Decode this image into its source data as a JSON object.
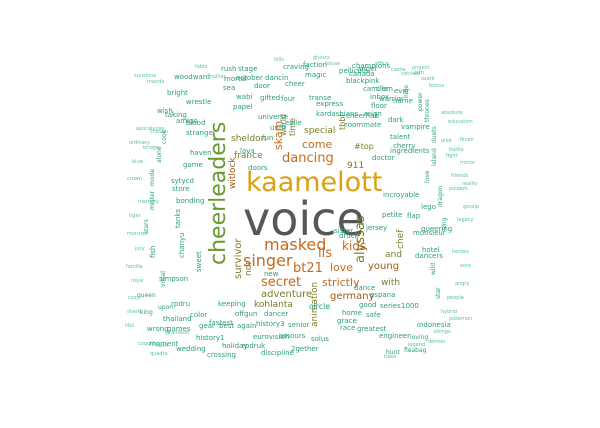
{
  "colors": {
    "dark": "#575757",
    "gold": "#d8a213",
    "green": "#6a9a2f",
    "orange": "#c86a1c",
    "brown": "#9c5a1a",
    "olive": "#7a7d2a",
    "teal": "#2b9e7b",
    "lightteal": "#5cc0a0"
  },
  "words": [
    {
      "text": "voice",
      "color": "dark"
    },
    {
      "text": "kaamelott",
      "color": "gold"
    },
    {
      "text": "cheerleaders",
      "color": "green"
    },
    {
      "text": "masked",
      "color": "orange"
    },
    {
      "text": "singer",
      "color": "orange"
    },
    {
      "text": "dancing",
      "color": "orange"
    },
    {
      "text": "alyssas",
      "color": "olive"
    },
    {
      "text": "bt21",
      "color": "orange"
    },
    {
      "text": "secret",
      "color": "orange"
    },
    {
      "text": "lls",
      "color": "orange"
    },
    {
      "text": "kids",
      "color": "orange"
    },
    {
      "text": "love",
      "color": "orange"
    },
    {
      "text": "strictly",
      "color": "orange"
    },
    {
      "text": "come",
      "color": "orange"
    },
    {
      "text": "skam",
      "color": "orange"
    },
    {
      "text": "witlock",
      "color": "brown"
    },
    {
      "text": "survivor",
      "color": "olive"
    },
    {
      "text": "adventure",
      "color": "olive"
    },
    {
      "text": "germany",
      "color": "brown"
    },
    {
      "text": "young",
      "color": "brown"
    },
    {
      "text": "france",
      "color": "olive"
    },
    {
      "text": "sheldon",
      "color": "olive"
    },
    {
      "text": "special",
      "color": "olive"
    },
    {
      "text": "and",
      "color": "olive"
    },
    {
      "text": "911",
      "color": "olive"
    },
    {
      "text": "ndr",
      "color": "olive"
    },
    {
      "text": "chef",
      "color": "olive"
    },
    {
      "text": "animation",
      "color": "olive"
    },
    {
      "text": "with",
      "color": "olive"
    },
    {
      "text": "kohlanta",
      "color": "olive"
    },
    {
      "text": "world",
      "color": "olive"
    },
    {
      "text": "time",
      "color": "olive"
    },
    {
      "text": "tbbt",
      "color": "olive"
    },
    {
      "text": "#top",
      "color": "olive"
    },
    {
      "text": "circle",
      "color": "teal"
    },
    {
      "text": "druck",
      "color": "teal"
    },
    {
      "text": "jersey",
      "color": "teal"
    },
    {
      "text": "roommate",
      "color": "teal"
    },
    {
      "text": "kardashians",
      "color": "teal"
    },
    {
      "text": "express",
      "color": "teal"
    },
    {
      "text": "cheerhab",
      "color": "teal"
    },
    {
      "text": "history3",
      "color": "teal"
    },
    {
      "text": "dancer",
      "color": "teal"
    },
    {
      "text": "eurovision",
      "color": "teal"
    },
    {
      "text": "discipline",
      "color": "teal"
    },
    {
      "text": "2gether",
      "color": "teal"
    },
    {
      "text": "wedding",
      "color": "teal"
    },
    {
      "text": "crossing",
      "color": "teal"
    },
    {
      "text": "history1",
      "color": "teal"
    },
    {
      "text": "holiday",
      "color": "teal"
    },
    {
      "text": "rpdruk",
      "color": "teal"
    },
    {
      "text": "keeping",
      "color": "teal"
    },
    {
      "text": "offgun",
      "color": "teal"
    },
    {
      "text": "rpdru",
      "color": "teal"
    },
    {
      "text": "simpson",
      "color": "teal"
    },
    {
      "text": "games",
      "color": "teal"
    },
    {
      "text": "wrong",
      "color": "teal"
    },
    {
      "text": "moment",
      "color": "teal"
    },
    {
      "text": "fastest",
      "color": "teal"
    },
    {
      "text": "thailand",
      "color": "teal"
    },
    {
      "text": "fish",
      "color": "teal"
    },
    {
      "text": "sweet",
      "color": "teal"
    },
    {
      "text": "chanyu",
      "color": "teal"
    },
    {
      "text": "tanks",
      "color": "teal"
    },
    {
      "text": "bonding",
      "color": "teal"
    },
    {
      "text": "store",
      "color": "teal"
    },
    {
      "text": "game",
      "color": "teal"
    },
    {
      "text": "haven",
      "color": "teal"
    },
    {
      "text": "sytycd",
      "color": "teal"
    },
    {
      "text": "stranger",
      "color": "teal"
    },
    {
      "text": "universe",
      "color": "teal"
    },
    {
      "text": "gifted",
      "color": "teal"
    },
    {
      "text": "four",
      "color": "teal"
    },
    {
      "text": "craving",
      "color": "teal"
    },
    {
      "text": "stage",
      "color": "teal"
    },
    {
      "text": "rush",
      "color": "teal"
    },
    {
      "text": "october",
      "color": "teal"
    },
    {
      "text": "dancin",
      "color": "teal"
    },
    {
      "text": "magic",
      "color": "teal"
    },
    {
      "text": "faction",
      "color": "teal"
    },
    {
      "text": "champions",
      "color": "teal"
    },
    {
      "text": "cheer",
      "color": "teal"
    },
    {
      "text": "canada",
      "color": "teal"
    },
    {
      "text": "blackpink",
      "color": "teal"
    },
    {
      "text": "camilla",
      "color": "teal"
    },
    {
      "text": "inbox",
      "color": "teal"
    },
    {
      "text": "warrior",
      "color": "teal"
    },
    {
      "text": "name",
      "color": "teal"
    },
    {
      "text": "vampire",
      "color": "teal"
    },
    {
      "text": "dark",
      "color": "teal"
    },
    {
      "text": "talent",
      "color": "teal"
    },
    {
      "text": "cherry",
      "color": "teal"
    },
    {
      "text": "ingredients",
      "color": "teal"
    },
    {
      "text": "doctor",
      "color": "teal"
    },
    {
      "text": "petite",
      "color": "teal"
    },
    {
      "text": "incroyable",
      "color": "teal"
    },
    {
      "text": "flap",
      "color": "teal"
    },
    {
      "text": "lego",
      "color": "teal"
    },
    {
      "text": "queering",
      "color": "teal"
    },
    {
      "text": "dancers",
      "color": "teal"
    },
    {
      "text": "monsieur",
      "color": "teal"
    },
    {
      "text": "hotel",
      "color": "teal"
    },
    {
      "text": "indonesia",
      "color": "teal"
    },
    {
      "text": "espana",
      "color": "teal"
    },
    {
      "text": "series",
      "color": "teal"
    },
    {
      "text": "1000",
      "color": "teal"
    },
    {
      "text": "greatest",
      "color": "teal"
    },
    {
      "text": "engineer",
      "color": "teal"
    },
    {
      "text": "home",
      "color": "teal"
    },
    {
      "text": "grace",
      "color": "teal"
    },
    {
      "text": "race",
      "color": "teal"
    },
    {
      "text": "solus",
      "color": "teal"
    },
    {
      "text": "amours",
      "color": "teal"
    },
    {
      "text": "senior",
      "color": "teal"
    },
    {
      "text": "safe",
      "color": "teal"
    },
    {
      "text": "good",
      "color": "teal"
    },
    {
      "text": "dance",
      "color": "teal"
    },
    {
      "text": "sister",
      "color": "teal"
    },
    {
      "text": "new",
      "color": "teal"
    },
    {
      "text": "doors",
      "color": "teal"
    },
    {
      "text": "lava",
      "color": "teal"
    },
    {
      "text": "fun",
      "color": "teal"
    },
    {
      "text": "unfit",
      "color": "teal"
    },
    {
      "text": "exile",
      "color": "teal"
    },
    {
      "text": "transe",
      "color": "teal"
    },
    {
      "text": "sea",
      "color": "teal"
    },
    {
      "text": "mortal",
      "color": "teal"
    },
    {
      "text": "door",
      "color": "teal"
    },
    {
      "text": "papel",
      "color": "teal"
    },
    {
      "text": "wabi",
      "color": "teal"
    },
    {
      "text": "blood",
      "color": "teal"
    },
    {
      "text": "amigo",
      "color": "teal"
    },
    {
      "text": "wish",
      "color": "teal"
    },
    {
      "text": "taking",
      "color": "teal"
    },
    {
      "text": "wrestle",
      "color": "teal"
    },
    {
      "text": "bright",
      "color": "teal"
    },
    {
      "text": "woodward",
      "color": "teal"
    },
    {
      "text": "pellicula",
      "color": "teal"
    },
    {
      "text": "angel",
      "color": "teal"
    },
    {
      "text": "clem",
      "color": "teal"
    },
    {
      "text": "ever",
      "color": "teal"
    },
    {
      "text": "reign",
      "color": "teal"
    },
    {
      "text": "floor",
      "color": "teal"
    },
    {
      "text": "gear",
      "color": "teal"
    },
    {
      "text": "best",
      "color": "teal"
    },
    {
      "text": "again",
      "color": "teal"
    },
    {
      "text": "color",
      "color": "teal"
    },
    {
      "text": "upon",
      "color": "teal"
    },
    {
      "text": "queen",
      "color": "teal"
    },
    {
      "text": "king",
      "color": "teal"
    },
    {
      "text": "vocal",
      "color": "teal"
    },
    {
      "text": "stars",
      "color": "teal"
    },
    {
      "text": "mister",
      "color": "teal"
    },
    {
      "text": "mode",
      "color": "teal"
    },
    {
      "text": "alone",
      "color": "teal"
    },
    {
      "text": "cook",
      "color": "teal"
    },
    {
      "text": "wild",
      "color": "teal"
    },
    {
      "text": "love",
      "color": "teal"
    },
    {
      "text": "island",
      "color": "teal"
    },
    {
      "text": "duets",
      "color": "teal"
    },
    {
      "text": "thrones",
      "color": "teal"
    },
    {
      "text": "power",
      "color": "teal"
    },
    {
      "text": "nine",
      "color": "teal"
    },
    {
      "text": "loving",
      "color": "teal"
    },
    {
      "text": "fleabag",
      "color": "teal"
    },
    {
      "text": "hunt",
      "color": "teal"
    },
    {
      "text": "dragon",
      "color": "teal"
    },
    {
      "text": "sing",
      "color": "teal"
    },
    {
      "text": "star",
      "color": "teal"
    },
    {
      "text": "project",
      "color": "lightteal"
    },
    {
      "text": "2sth",
      "color": "lightteal"
    },
    {
      "text": "absolute",
      "color": "lightteal"
    },
    {
      "text": "education",
      "color": "lightteal"
    },
    {
      "text": "finish",
      "color": "lightteal"
    },
    {
      "text": "grandson",
      "color": "lightteal"
    },
    {
      "text": "hybrid",
      "color": "lightteal"
    },
    {
      "text": "sunshine",
      "color": "lightteal"
    },
    {
      "text": "mando",
      "color": "lightteal"
    },
    {
      "text": "fable",
      "color": "lightteal"
    },
    {
      "text": "mulher",
      "color": "lightteal"
    },
    {
      "text": "battle",
      "color": "lightteal"
    },
    {
      "text": "reality",
      "color": "lightteal"
    },
    {
      "text": "jury",
      "color": "lightteal"
    },
    {
      "text": "memory",
      "color": "lightteal"
    },
    {
      "text": "nash",
      "color": "lightteal"
    },
    {
      "text": "cozy",
      "color": "lightteal"
    },
    {
      "text": "quadra",
      "color": "lightteal"
    },
    {
      "text": "coquilles",
      "color": "lightteal"
    },
    {
      "text": "idol",
      "color": "lightteal"
    },
    {
      "text": "shark",
      "color": "lightteal"
    },
    {
      "text": "famille",
      "color": "lightteal"
    },
    {
      "text": "royal",
      "color": "lightteal"
    },
    {
      "text": "monster",
      "color": "lightteal"
    },
    {
      "text": "tiger",
      "color": "lightteal"
    },
    {
      "text": "crown",
      "color": "lightteal"
    },
    {
      "text": "blue",
      "color": "lightteal"
    },
    {
      "text": "bridge",
      "color": "lightteal"
    },
    {
      "text": "chosen",
      "color": "lightteal"
    },
    {
      "text": "apocalypse",
      "color": "lightteal"
    },
    {
      "text": "ordinary",
      "color": "lightteal"
    },
    {
      "text": "mirror",
      "color": "lightteal"
    },
    {
      "text": "gossip",
      "color": "lightteal"
    },
    {
      "text": "legacy",
      "color": "lightteal"
    },
    {
      "text": "heroes",
      "color": "lightteal"
    },
    {
      "text": "sons",
      "color": "lightteal"
    },
    {
      "text": "angry",
      "color": "lightteal"
    },
    {
      "text": "people",
      "color": "lightteal"
    },
    {
      "text": "pokemon",
      "color": "lightteal"
    },
    {
      "text": "vikings",
      "color": "lightteal"
    },
    {
      "text": "demon",
      "color": "lightteal"
    },
    {
      "text": "legend",
      "color": "lightteal"
    },
    {
      "text": "bake",
      "color": "lightteal"
    },
    {
      "text": "poldark",
      "color": "lightteal"
    },
    {
      "text": "friends",
      "color": "lightteal"
    },
    {
      "text": "fight",
      "color": "lightteal"
    },
    {
      "text": "pilot",
      "color": "lightteal"
    },
    {
      "text": "bonus",
      "color": "lightteal"
    },
    {
      "text": "ozark",
      "color": "lightteal"
    },
    {
      "text": "ratched",
      "color": "lightteal"
    },
    {
      "text": "castle",
      "color": "lightteal"
    },
    {
      "text": "office",
      "color": "lightteal"
    },
    {
      "text": "house",
      "color": "lightteal"
    },
    {
      "text": "ghosts",
      "color": "lightteal"
    },
    {
      "text": "hills",
      "color": "lightteal"
    }
  ]
}
